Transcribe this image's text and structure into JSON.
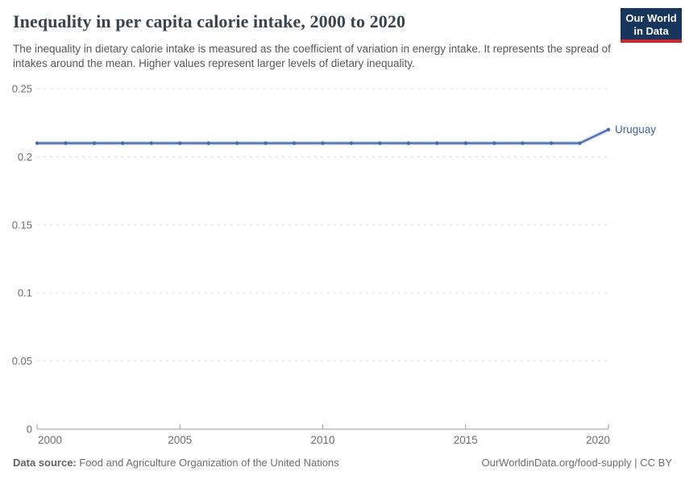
{
  "header": {
    "title": "Inequality in per capita calorie intake, 2000 to 2020",
    "subtitle": "The inequality in dietary calorie intake is measured as the coefficient of variation in energy intake. It represents the spread of intakes around the mean. Higher values represent larger levels of dietary inequality.",
    "logo": {
      "line1": "Our World",
      "line2": "in Data",
      "bg_color": "#18355e",
      "stripe_color": "#d7262a"
    }
  },
  "chart_data": {
    "type": "line",
    "title": "Inequality in per capita calorie intake, 2000 to 2020",
    "xlabel": "",
    "ylabel": "",
    "xlim": [
      2000,
      2020
    ],
    "ylim": [
      0,
      0.25
    ],
    "xticks": [
      2000,
      2005,
      2010,
      2015,
      2020
    ],
    "yticks": [
      0,
      0.05,
      0.1,
      0.15,
      0.2,
      0.25
    ],
    "ytick_labels": [
      "0",
      "0.05",
      "0.1",
      "0.15",
      "0.2",
      "0.25"
    ],
    "grid": "horizontal-dashed",
    "legend_position": "end-of-line-label",
    "series": [
      {
        "name": "Uruguay",
        "color": "#4165a8",
        "halo_color": "#b9c7e4",
        "x": [
          2000,
          2001,
          2002,
          2003,
          2004,
          2005,
          2006,
          2007,
          2008,
          2009,
          2010,
          2011,
          2012,
          2013,
          2014,
          2015,
          2016,
          2017,
          2018,
          2019,
          2020
        ],
        "values": [
          0.21,
          0.21,
          0.21,
          0.21,
          0.21,
          0.21,
          0.21,
          0.21,
          0.21,
          0.21,
          0.21,
          0.21,
          0.21,
          0.21,
          0.21,
          0.21,
          0.21,
          0.21,
          0.21,
          0.21,
          0.22
        ]
      }
    ],
    "axis_color": "#9a9a9a",
    "gridline_color": "#dcdcdc",
    "tick_label_color": "#6e6e6e"
  },
  "footer": {
    "source_label": "Data source:",
    "source_text": " Food and Agriculture Organization of the United Nations",
    "link_text": "OurWorldinData.org/food-supply | CC BY"
  }
}
